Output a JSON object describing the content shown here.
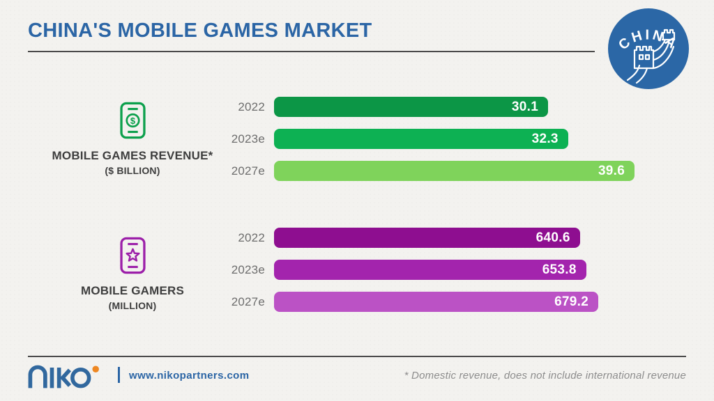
{
  "header": {
    "title": "CHINA'S MOBILE GAMES MARKET"
  },
  "badge": {
    "label": "CHINA",
    "icon": "great-wall-icon",
    "color": "#2b67a6"
  },
  "chart_data": [
    {
      "type": "bar",
      "group": "mobile-games-revenue",
      "title": "MOBILE GAMES REVENUE*",
      "subtitle": "($ BILLION)",
      "icon": "phone-dollar-icon",
      "icon_symbol": "$",
      "icon_color": "#0ca04c",
      "orientation": "horizontal",
      "categories": [
        "2022",
        "2023e",
        "2027e"
      ],
      "values": [
        30.1,
        32.3,
        39.6
      ],
      "bar_colors": [
        "#0c9646",
        "#0db153",
        "#7fd35b"
      ],
      "value_label_color": "#ffffff",
      "xlim": [
        0,
        39.6
      ],
      "max_bar_fraction": 0.875,
      "grid": false,
      "legend": false
    },
    {
      "type": "bar",
      "group": "mobile-gamers",
      "title": "MOBILE GAMERS",
      "subtitle": "(MILLION)",
      "icon": "phone-star-icon",
      "icon_color": "#9c1fa9",
      "orientation": "horizontal",
      "categories": [
        "2022",
        "2023e",
        "2027e"
      ],
      "values": [
        640.6,
        653.8,
        679.2
      ],
      "bar_colors": [
        "#8e0e90",
        "#a324ad",
        "#bb52c5"
      ],
      "value_label_color": "#ffffff",
      "xlim": [
        0,
        679.2
      ],
      "max_bar_fraction": 0.787,
      "grid": false,
      "legend": false
    }
  ],
  "footer": {
    "logo_text": "niko",
    "url": "www.nikopartners.com",
    "footnote": "* Domestic revenue, does not include international revenue"
  },
  "colors": {
    "title_blue": "#2b65a5",
    "badge_blue": "#2b67a6",
    "divider": "#4a4a4a",
    "year_label": "#6d6d6d",
    "section_label": "#3e3e3e",
    "footnote_gray": "#8d8d8d",
    "logo_blue": "#31689e",
    "logo_orange": "#ee8722",
    "background": "#f3f2ef"
  }
}
